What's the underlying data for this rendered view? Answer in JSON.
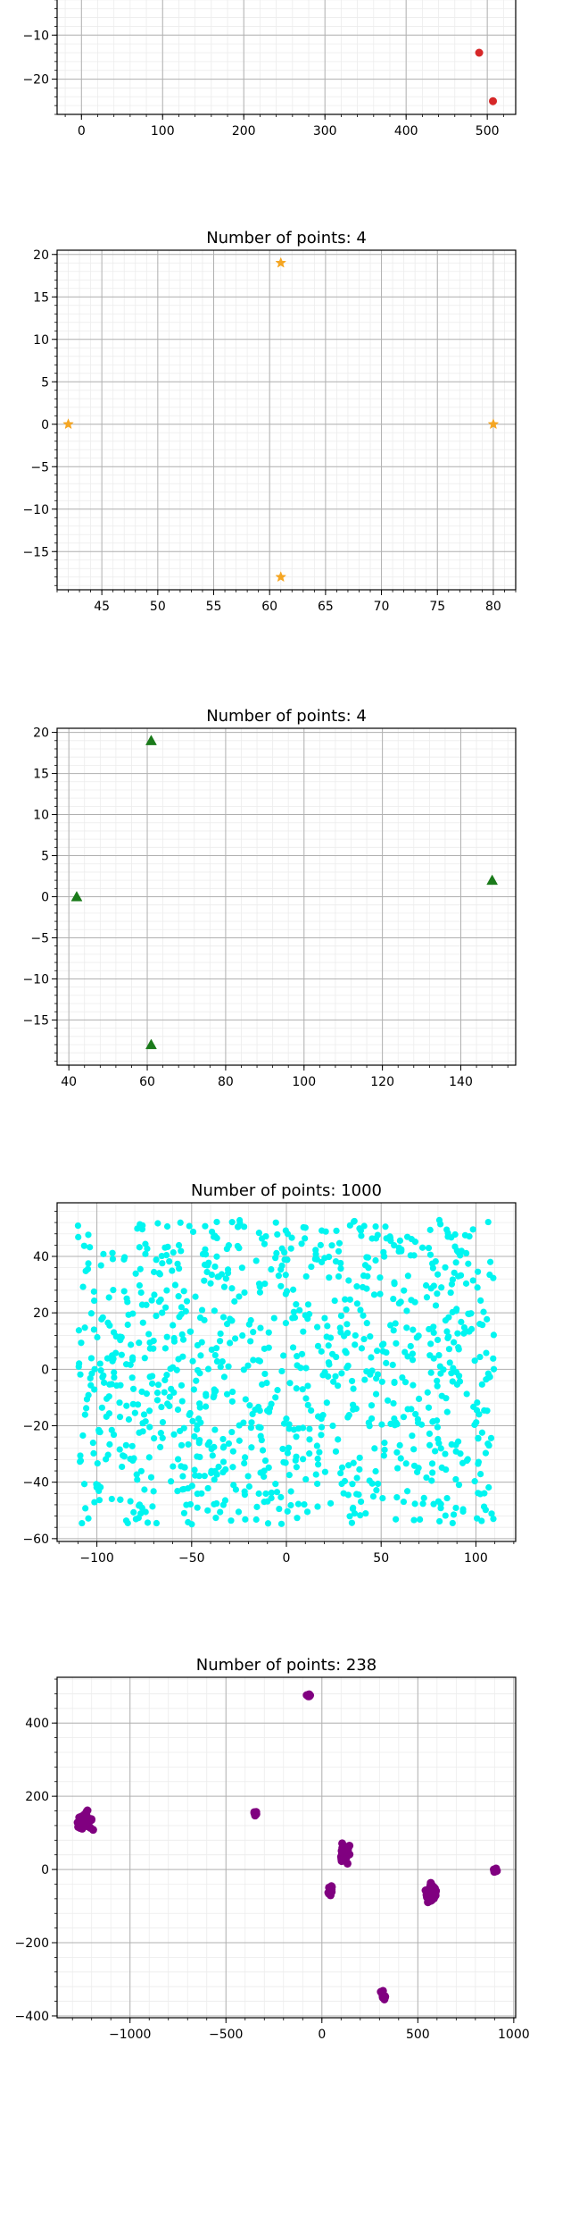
{
  "chart_data": [
    {
      "type": "scatter",
      "title": "",
      "xlabel": "",
      "ylabel": "",
      "xlim": [
        -30,
        535
      ],
      "ylim": [
        -28,
        0
      ],
      "xticks": [
        0,
        100,
        200,
        300,
        400,
        500
      ],
      "yticks": [
        -20,
        -10
      ],
      "grid": true,
      "series": [
        {
          "marker": "circle",
          "color": "#d62728",
          "x": [
            490,
            507
          ],
          "y": [
            -14,
            -25
          ]
        }
      ]
    },
    {
      "type": "scatter",
      "title": "Number of points: 4",
      "xlabel": "",
      "ylabel": "",
      "xlim": [
        41,
        82
      ],
      "ylim": [
        -19.5,
        20.5
      ],
      "xticks": [
        45,
        50,
        55,
        60,
        65,
        70,
        75,
        80
      ],
      "yticks": [
        -15,
        -10,
        -5,
        0,
        5,
        10,
        15,
        20
      ],
      "grid": true,
      "series": [
        {
          "marker": "star",
          "color": "#f5a623",
          "x": [
            42,
            61,
            61,
            80
          ],
          "y": [
            0,
            19,
            -18,
            0
          ]
        }
      ]
    },
    {
      "type": "scatter",
      "title": "Number of points: 4",
      "xlabel": "",
      "ylabel": "",
      "xlim": [
        37,
        154
      ],
      "ylim": [
        -20.5,
        20.5
      ],
      "xticks": [
        40,
        60,
        80,
        100,
        120,
        140
      ],
      "yticks": [
        -15,
        -10,
        -5,
        0,
        5,
        10,
        15,
        20
      ],
      "grid": true,
      "series": [
        {
          "marker": "triangle",
          "color": "#1a7a1a",
          "x": [
            42,
            61,
            61,
            148
          ],
          "y": [
            0,
            19,
            -18,
            2
          ]
        }
      ]
    },
    {
      "type": "scatter",
      "title": "Number of points: 1000",
      "xlabel": "",
      "ylabel": "",
      "xlim": [
        -121,
        121
      ],
      "ylim": [
        -61,
        59
      ],
      "xticks": [
        -100,
        -50,
        0,
        50,
        100
      ],
      "yticks": [
        -60,
        -40,
        -20,
        0,
        20,
        40
      ],
      "grid": true,
      "series": [
        {
          "marker": "circle",
          "color": "#00f5f0",
          "count": 1000,
          "x_range": [
            -110,
            110
          ],
          "y_range": [
            -55,
            53
          ]
        }
      ]
    },
    {
      "type": "scatter",
      "title": "Number of points: 238",
      "xlabel": "",
      "ylabel": "",
      "xlim": [
        -1380,
        1010
      ],
      "ylim": [
        -405,
        525
      ],
      "xticks": [
        -1000,
        -500,
        0,
        500,
        1000
      ],
      "yticks": [
        -400,
        -200,
        0,
        200,
        400
      ],
      "grid": true,
      "series": [
        {
          "marker": "circle",
          "color": "#800080",
          "count": 238,
          "clusters": [
            {
              "cx": -1240,
              "cy": 130,
              "sx": 25,
              "sy": 22,
              "n": 60
            },
            {
              "cx": -70,
              "cy": 478,
              "sx": 10,
              "sy": 6,
              "n": 6
            },
            {
              "cx": -345,
              "cy": 152,
              "sx": 8,
              "sy": 5,
              "n": 5
            },
            {
              "cx": 45,
              "cy": -55,
              "sx": 10,
              "sy": 10,
              "n": 20
            },
            {
              "cx": 120,
              "cy": 45,
              "sx": 18,
              "sy": 20,
              "n": 45
            },
            {
              "cx": 320,
              "cy": -345,
              "sx": 12,
              "sy": 12,
              "n": 12
            },
            {
              "cx": 570,
              "cy": -62,
              "sx": 20,
              "sy": 16,
              "n": 82
            },
            {
              "cx": 905,
              "cy": -2,
              "sx": 8,
              "sy": 6,
              "n": 8
            }
          ]
        }
      ]
    }
  ]
}
